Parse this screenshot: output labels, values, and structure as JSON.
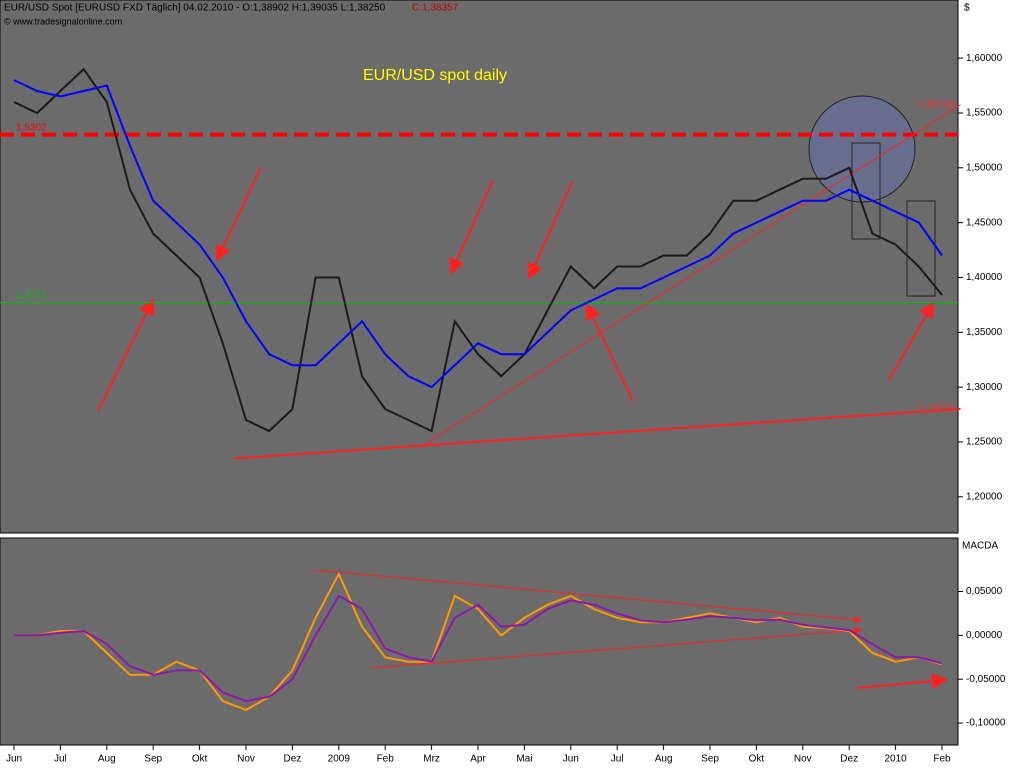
{
  "chart_data": [
    {
      "type": "line",
      "header": "EUR/USD Spot [EURUSD FXD  Täglich] 04.02.2010 - O:1,38902 H:1,39035 L:1,38250",
      "header_close": "C:1,38357",
      "copyright": "© www.tradesignalonline.com",
      "y_unit": "$",
      "title": "EUR/USD spot daily",
      "categories": [
        "Jun",
        null,
        "Jul",
        null,
        "Aug",
        null,
        "Sep",
        null,
        "Okt",
        null,
        "Nov",
        null,
        "Dez",
        null,
        "2009",
        null,
        "Feb",
        null,
        "Mrz",
        null,
        "Apr",
        null,
        "Mai",
        null,
        "Jun",
        null,
        "Jul",
        null,
        "Aug",
        null,
        "Sep",
        null,
        "Okt",
        null,
        "Nov",
        null,
        "Dez",
        null,
        "2010",
        null,
        "Feb"
      ],
      "series": [
        {
          "color": "#1a1a1a",
          "values": [
            1.56,
            1.55,
            1.57,
            1.59,
            1.56,
            1.48,
            1.44,
            1.42,
            1.4,
            1.34,
            1.27,
            1.26,
            1.28,
            1.4,
            1.4,
            1.31,
            1.28,
            1.27,
            1.26,
            1.36,
            1.33,
            1.31,
            1.33,
            1.37,
            1.41,
            1.39,
            1.41,
            1.41,
            1.42,
            1.42,
            1.44,
            1.47,
            1.47,
            1.48,
            1.49,
            1.49,
            1.5,
            1.44,
            1.43,
            1.41,
            1.384
          ]
        },
        {
          "color": "#0000ff",
          "values": [
            1.58,
            1.57,
            1.565,
            1.57,
            1.575,
            1.52,
            1.47,
            1.45,
            1.43,
            1.4,
            1.36,
            1.33,
            1.32,
            1.32,
            1.34,
            1.36,
            1.33,
            1.31,
            1.3,
            1.32,
            1.34,
            1.33,
            1.33,
            1.35,
            1.37,
            1.38,
            1.39,
            1.39,
            1.4,
            1.41,
            1.42,
            1.44,
            1.45,
            1.46,
            1.47,
            1.47,
            1.48,
            1.47,
            1.46,
            1.45,
            1.42
          ]
        }
      ],
      "hlines": [
        {
          "value": 1.5302,
          "label": "1,5302",
          "color": "#ff0000",
          "dashed": true
        },
        {
          "value": 1.3771,
          "label": "1,3771",
          "color": "#00c000",
          "dashed": false
        }
      ],
      "trendlines": [
        {
          "start": [
            9.5,
            1.235
          ],
          "end": [
            40.8,
            1.28021
          ],
          "label": "1,28021"
        },
        {
          "start": [
            17.5,
            1.245
          ],
          "end": [
            40.8,
            1.55738
          ],
          "label": "1,55738"
        }
      ],
      "ylim": [
        1.167,
        1.653
      ],
      "yticks": [
        {
          "value": 1.2,
          "label": "1,20000"
        },
        {
          "value": 1.25,
          "label": "1,25000"
        },
        {
          "value": 1.3,
          "label": "1,30000"
        },
        {
          "value": 1.35,
          "label": "1,35000"
        },
        {
          "value": 1.4,
          "label": "1,40000"
        },
        {
          "value": 1.45,
          "label": "1,45000"
        },
        {
          "value": 1.5,
          "label": "1,50000"
        },
        {
          "value": 1.55,
          "label": "1,55000"
        },
        {
          "value": 1.6,
          "label": "1,60000"
        }
      ]
    },
    {
      "type": "line",
      "title": "MACDA",
      "series": [
        {
          "color": "#ff9900",
          "values": [
            0,
            0,
            0.005,
            0.005,
            -0.02,
            -0.045,
            -0.045,
            -0.03,
            -0.04,
            -0.075,
            -0.085,
            -0.07,
            -0.04,
            0.02,
            0.07,
            0.01,
            -0.025,
            -0.03,
            -0.03,
            0.045,
            0.03,
            0,
            0.02,
            0.035,
            0.045,
            0.03,
            0.02,
            0.015,
            0.015,
            0.02,
            0.025,
            0.02,
            0.015,
            0.02,
            0.01,
            0.008,
            0.005,
            -0.02,
            -0.03,
            -0.025,
            -0.033
          ]
        },
        {
          "color": "#8a1aa8",
          "values": [
            0,
            0,
            0.003,
            0.005,
            -0.01,
            -0.035,
            -0.045,
            -0.04,
            -0.04,
            -0.065,
            -0.075,
            -0.07,
            -0.05,
            0,
            0.045,
            0.03,
            -0.015,
            -0.025,
            -0.03,
            0.02,
            0.035,
            0.01,
            0.012,
            0.03,
            0.04,
            0.035,
            0.025,
            0.017,
            0.015,
            0.018,
            0.022,
            0.02,
            0.017,
            0.018,
            0.012,
            0.009,
            0.006,
            -0.01,
            -0.025,
            -0.025,
            -0.032
          ]
        }
      ],
      "ylim": [
        -0.125,
        0.111
      ],
      "yticks": [
        {
          "value": -0.1,
          "label": "-0,10000"
        },
        {
          "value": -0.05,
          "label": "-0,05000"
        },
        {
          "value": 0,
          "label": "0,00000"
        },
        {
          "value": 0.05,
          "label": "0,05000"
        }
      ]
    }
  ]
}
